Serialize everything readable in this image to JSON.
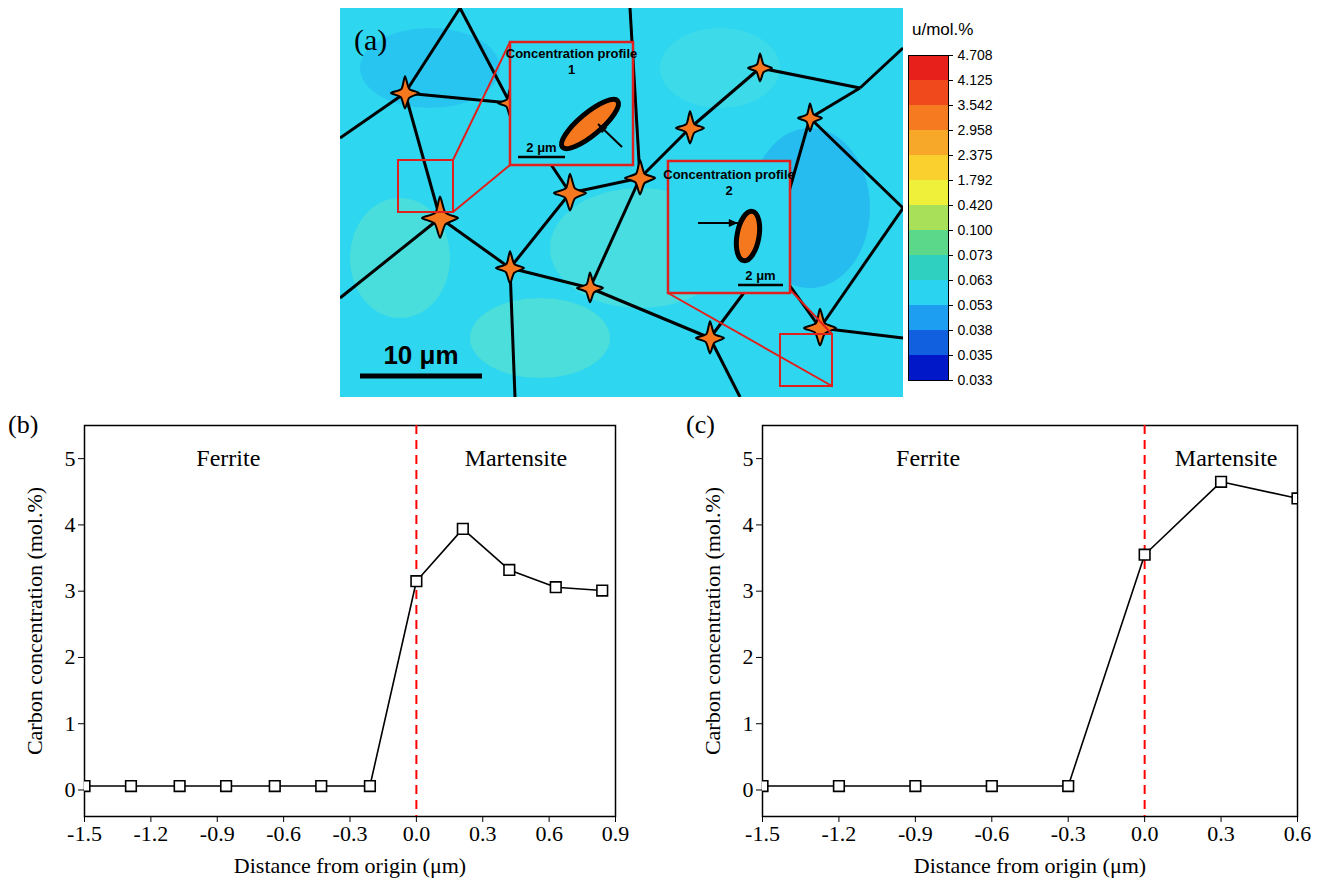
{
  "chart_data": [
    {
      "type": "image",
      "title": "(a)",
      "scale_bar": "10 μm",
      "colorbar": {
        "title": "u/mol.%",
        "ticks": [
          4.708,
          4.125,
          3.542,
          2.958,
          2.375,
          1.792,
          {
            "value": 0.42,
            "label": "0.420"
          },
          {
            "value": 0.1,
            "label": "0.100"
          },
          0.073,
          0.063,
          0.053,
          0.038,
          0.035,
          0.033
        ],
        "colors": [
          "#e8201c",
          "#f04a1c",
          "#f57a20",
          "#f8a828",
          "#fad02e",
          "#eef03a",
          "#a8e05a",
          "#5cd88a",
          "#30d0c0",
          "#2ad4f0",
          "#1e9ef0",
          "#1060e0",
          "#0018c8"
        ]
      },
      "insets": [
        {
          "title": "Concentration profile 1",
          "scale_bar": "2 μm"
        },
        {
          "title": "Concentration profile 2",
          "scale_bar": "2 μm"
        }
      ]
    },
    {
      "type": "line",
      "title": "(b)",
      "x_label": "Distance from origin (μm)",
      "y_label": "Carbon concentration (mol.%)",
      "x": [
        -1.5,
        -1.29,
        -1.07,
        -0.86,
        -0.64,
        -0.43,
        -0.21,
        0,
        0.21,
        0.42,
        0.63,
        0.84
      ],
      "values": [
        0.06,
        0.06,
        0.06,
        0.06,
        0.06,
        0.06,
        0.06,
        3.15,
        3.94,
        3.32,
        3.06,
        3.01
      ],
      "color": "#000000",
      "marker": "square",
      "line_style": "solid",
      "xlim": [
        -1.5,
        0.9
      ],
      "ylim": [
        -0.4,
        5.5
      ],
      "xticks": [
        -1.5,
        -1.2,
        -0.9,
        -0.6,
        -0.3,
        {
          "value": 0,
          "label": "0.0"
        },
        0.3,
        0.6,
        0.9
      ],
      "yticks": [
        0,
        1,
        2,
        3,
        4,
        5
      ],
      "annotations": [
        {
          "text": "Ferrite",
          "x": -0.85,
          "y": 5
        },
        {
          "text": "Martensite",
          "x": 0.45,
          "y": 5
        }
      ],
      "reference_line": {
        "x": 0,
        "color": "#ff0000",
        "line_style": "dashed"
      }
    },
    {
      "type": "line",
      "title": "(c)",
      "x_label": "Distance from origin (μm)",
      "y_label": "Carbon concentration (mol.%)",
      "x": [
        -1.5,
        -1.2,
        -0.9,
        -0.6,
        -0.3,
        0,
        0.3,
        0.6
      ],
      "values": [
        0.06,
        0.06,
        0.06,
        0.06,
        0.06,
        3.55,
        4.65,
        4.4
      ],
      "color": "#000000",
      "marker": "square",
      "line_style": "solid",
      "xlim": [
        -1.5,
        0.6
      ],
      "ylim": [
        -0.4,
        5.5
      ],
      "xticks": [
        -1.5,
        -1.2,
        -0.9,
        -0.6,
        -0.3,
        {
          "value": 0,
          "label": "0.0"
        },
        0.3,
        0.6
      ],
      "yticks": [
        0,
        1,
        2,
        3,
        4,
        5
      ],
      "annotations": [
        {
          "text": "Ferrite",
          "x": -0.85,
          "y": 5
        },
        {
          "text": "Martensite",
          "x": 0.32,
          "y": 5
        }
      ],
      "reference_line": {
        "x": 0,
        "color": "#ff0000",
        "line_style": "dashed"
      }
    }
  ]
}
